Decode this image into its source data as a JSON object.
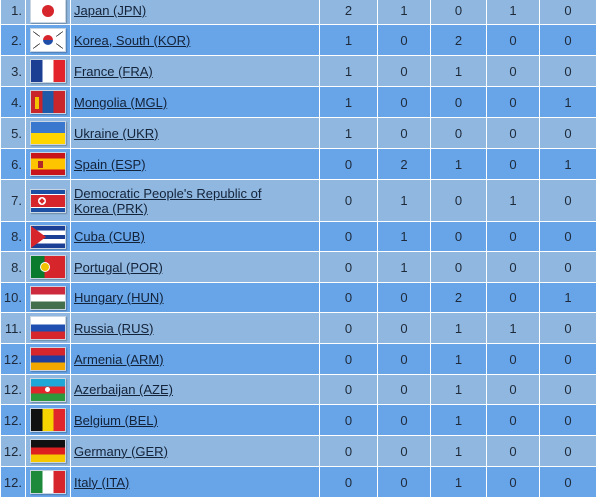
{
  "rows": [
    {
      "rank": "1.",
      "country": "Japan (JPN)",
      "flag": "japan-flag",
      "c1": "2",
      "c2": "1",
      "c3": "0",
      "c4": "1",
      "c5": "0"
    },
    {
      "rank": "2.",
      "country": "Korea, South (KOR)",
      "flag": "south-korea-flag",
      "c1": "1",
      "c2": "0",
      "c3": "2",
      "c4": "0",
      "c5": "0"
    },
    {
      "rank": "3.",
      "country": "France (FRA)",
      "flag": "france-flag",
      "c1": "1",
      "c2": "0",
      "c3": "1",
      "c4": "0",
      "c5": "0"
    },
    {
      "rank": "4.",
      "country": "Mongolia (MGL)",
      "flag": "mongolia-flag",
      "c1": "1",
      "c2": "0",
      "c3": "0",
      "c4": "0",
      "c5": "1"
    },
    {
      "rank": "5.",
      "country": "Ukraine (UKR)",
      "flag": "ukraine-flag",
      "c1": "1",
      "c2": "0",
      "c3": "0",
      "c4": "0",
      "c5": "0"
    },
    {
      "rank": "6.",
      "country": "Spain (ESP)",
      "flag": "spain-flag",
      "c1": "0",
      "c2": "2",
      "c3": "1",
      "c4": "0",
      "c5": "1"
    },
    {
      "rank": "7.",
      "country": "Democratic People's Republic of Korea (PRK)",
      "flag": "north-korea-flag",
      "c1": "0",
      "c2": "1",
      "c3": "0",
      "c4": "1",
      "c5": "0"
    },
    {
      "rank": "8.",
      "country": "Cuba (CUB)",
      "flag": "cuba-flag",
      "c1": "0",
      "c2": "1",
      "c3": "0",
      "c4": "0",
      "c5": "0"
    },
    {
      "rank": "8.",
      "country": "Portugal (POR)",
      "flag": "portugal-flag",
      "c1": "0",
      "c2": "1",
      "c3": "0",
      "c4": "0",
      "c5": "0"
    },
    {
      "rank": "10.",
      "country": "Hungary (HUN)",
      "flag": "hungary-flag",
      "c1": "0",
      "c2": "0",
      "c3": "2",
      "c4": "0",
      "c5": "1"
    },
    {
      "rank": "11.",
      "country": "Russia (RUS)",
      "flag": "russia-flag",
      "c1": "0",
      "c2": "0",
      "c3": "1",
      "c4": "1",
      "c5": "0"
    },
    {
      "rank": "12.",
      "country": "Armenia (ARM)",
      "flag": "armenia-flag",
      "c1": "0",
      "c2": "0",
      "c3": "1",
      "c4": "0",
      "c5": "0"
    },
    {
      "rank": "12.",
      "country": "Azerbaijan (AZE)",
      "flag": "azerbaijan-flag",
      "c1": "0",
      "c2": "0",
      "c3": "1",
      "c4": "0",
      "c5": "0"
    },
    {
      "rank": "12.",
      "country": "Belgium (BEL)",
      "flag": "belgium-flag",
      "c1": "0",
      "c2": "0",
      "c3": "1",
      "c4": "0",
      "c5": "0"
    },
    {
      "rank": "12.",
      "country": "Germany (GER)",
      "flag": "germany-flag",
      "c1": "0",
      "c2": "0",
      "c3": "1",
      "c4": "0",
      "c5": "0"
    },
    {
      "rank": "12.",
      "country": "Italy (ITA)",
      "flag": "italy-flag",
      "c1": "0",
      "c2": "0",
      "c3": "1",
      "c4": "0",
      "c5": "0"
    }
  ],
  "colors": {
    "row_light": "#90b7df",
    "row_dark": "#67a4e8",
    "cell_border": "#ffffff",
    "link_text": "#13233a"
  }
}
